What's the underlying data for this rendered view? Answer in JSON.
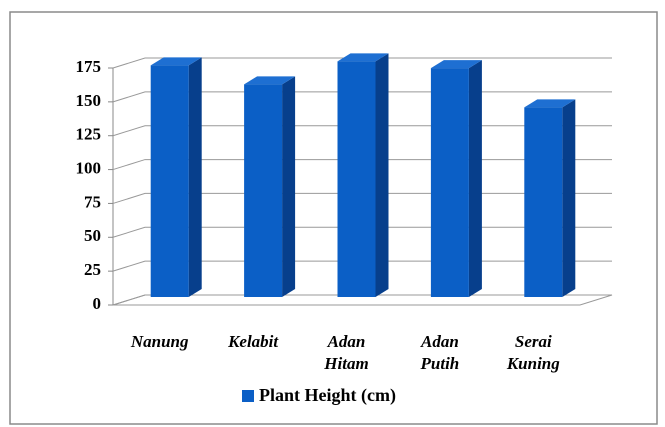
{
  "chart_data": {
    "type": "bar3d",
    "categories": [
      "Nanung",
      "Kelabit",
      "Adan Hitam",
      "Adan Putih",
      "Serai Kuning"
    ],
    "series": [
      {
        "name": "Plant Height (cm)",
        "color": "#0b5fc6",
        "values": [
          171,
          157,
          174,
          169,
          140
        ]
      }
    ],
    "ylim": [
      0,
      175
    ],
    "yticks": [
      0,
      25,
      50,
      75,
      100,
      125,
      150,
      175
    ],
    "grid": true,
    "legend": "bottom"
  }
}
